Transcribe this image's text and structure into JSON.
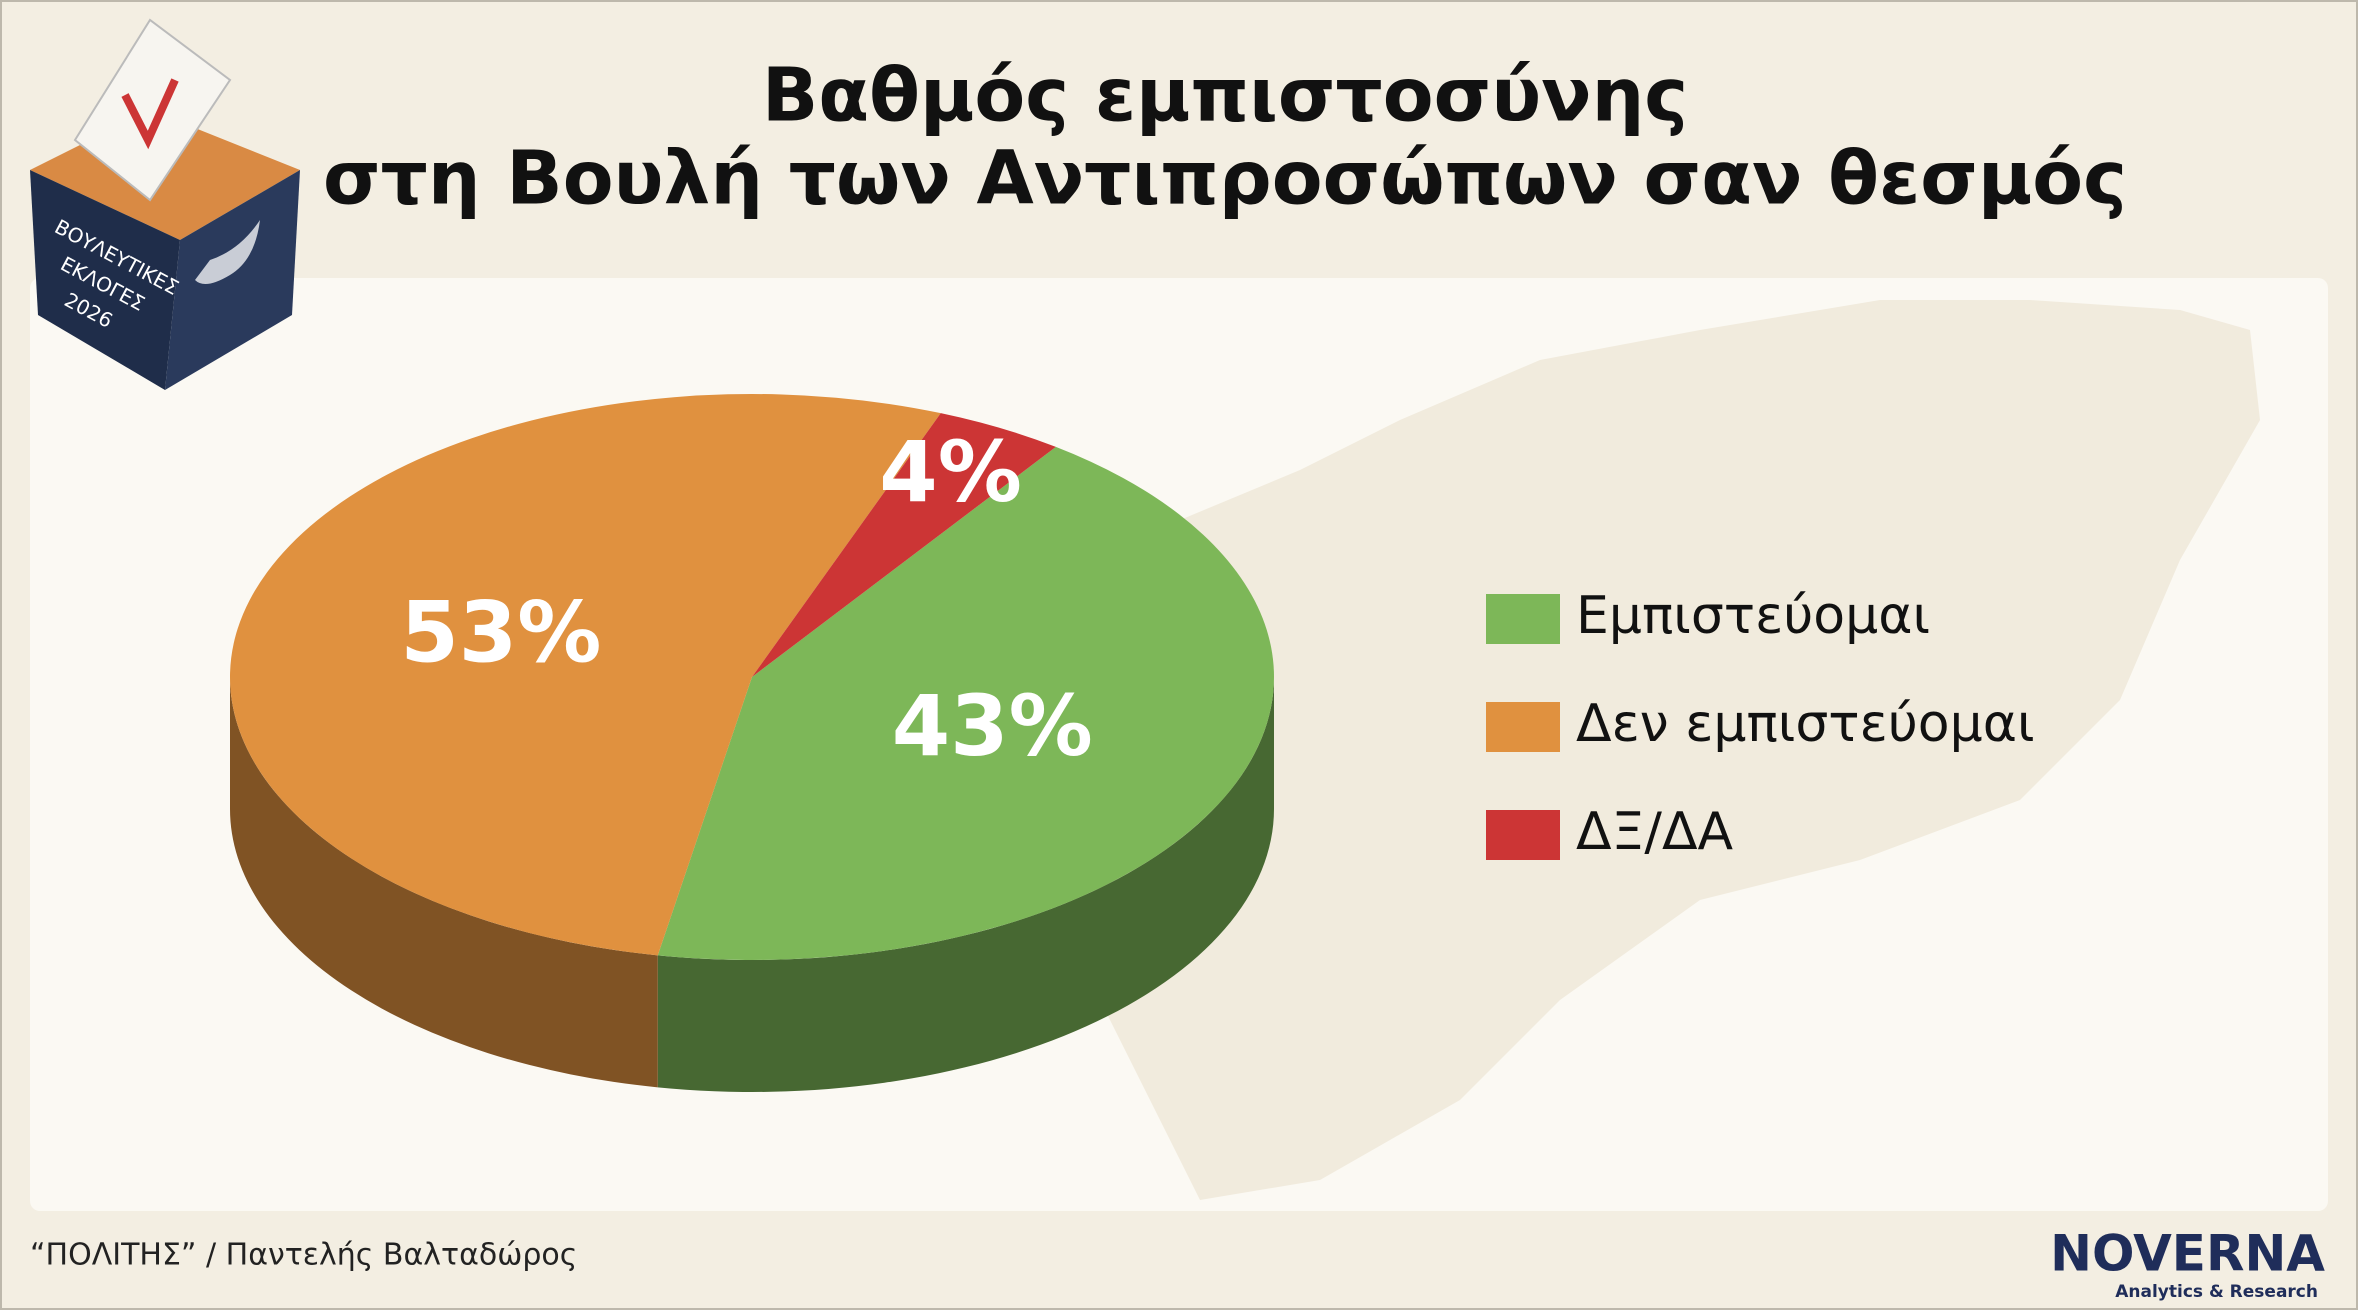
{
  "chart_data": {
    "type": "pie",
    "title": [
      "Βαθμός εμπιστοσύνης",
      "στη Βουλή των Αντιπροσώπων σαν θεσμός"
    ],
    "categories": [
      "Εμπιστεύομαι",
      "Δεν εμπιστεύομαι",
      "ΔΞ/ΔΑ"
    ],
    "values": [
      43,
      53,
      4
    ],
    "value_labels": [
      "43%",
      "53%",
      "4%"
    ],
    "colors": [
      "#7db758",
      "#e0913f",
      "#cc3535"
    ],
    "legend": "right"
  },
  "badge": [
    "ΒΟΥΛΕΥΤΙΚΕΣ",
    "ΕΚΛΟΓΕΣ",
    "2026"
  ],
  "source": "“ΠΟΛΙΤΗΣ” / Παντελής Βαλταδώρος",
  "logo": {
    "name": "NOVERNA",
    "tagline": "Analytics & Research"
  }
}
